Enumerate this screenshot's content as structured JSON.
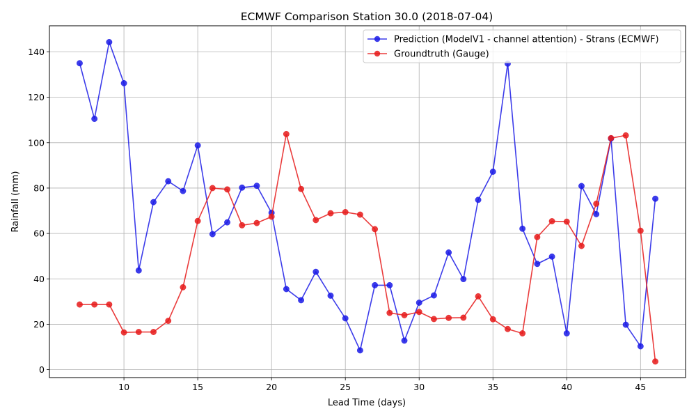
{
  "chart_data": {
    "type": "line",
    "title": "ECMWF Comparison Station 30.0 (2018-07-04)",
    "xlabel": "Lead Time (days)",
    "ylabel": "Rainfall (mm)",
    "xlim": [
      4.95,
      48.05
    ],
    "ylim": [
      -3.5,
      151.5
    ],
    "xticks": [
      10,
      15,
      20,
      25,
      30,
      35,
      40,
      45
    ],
    "yticks": [
      0,
      20,
      40,
      60,
      80,
      100,
      120,
      140
    ],
    "grid": true,
    "legend_position": "top-right",
    "x": [
      7,
      8,
      9,
      10,
      11,
      12,
      13,
      14,
      15,
      16,
      17,
      18,
      19,
      20,
      21,
      22,
      23,
      24,
      25,
      26,
      27,
      28,
      29,
      30,
      31,
      32,
      33,
      34,
      35,
      36,
      37,
      38,
      39,
      40,
      41,
      42,
      43,
      44,
      45,
      46
    ],
    "series": [
      {
        "name": "Prediction (ModelV1 - channel attention) - Strans (ECMWF)",
        "color": "#1a1ae6",
        "values": [
          135.0,
          110.5,
          144.3,
          126.2,
          43.7,
          73.8,
          83.0,
          78.7,
          98.8,
          59.7,
          64.9,
          80.2,
          81.0,
          69.1,
          35.5,
          30.6,
          43.1,
          32.6,
          22.6,
          8.5,
          37.2,
          37.2,
          12.8,
          29.5,
          32.7,
          51.6,
          39.9,
          74.8,
          87.2,
          134.8,
          62.1,
          46.6,
          49.8,
          16.0,
          80.9,
          68.5,
          101.8,
          19.8,
          10.3,
          75.3
        ]
      },
      {
        "name": "Groundtruth (Gauge)",
        "color": "#e61a1a",
        "values": [
          28.7,
          28.7,
          28.7,
          16.4,
          16.6,
          16.6,
          21.5,
          36.3,
          65.5,
          80.0,
          79.4,
          63.6,
          64.6,
          67.4,
          103.8,
          79.6,
          65.9,
          68.9,
          69.4,
          68.3,
          61.9,
          25.0,
          24.0,
          25.4,
          22.3,
          22.8,
          22.9,
          32.3,
          22.2,
          17.9,
          16.0,
          58.4,
          65.4,
          65.2,
          54.5,
          73.1,
          102.0,
          103.2,
          61.2,
          3.6
        ]
      }
    ]
  }
}
